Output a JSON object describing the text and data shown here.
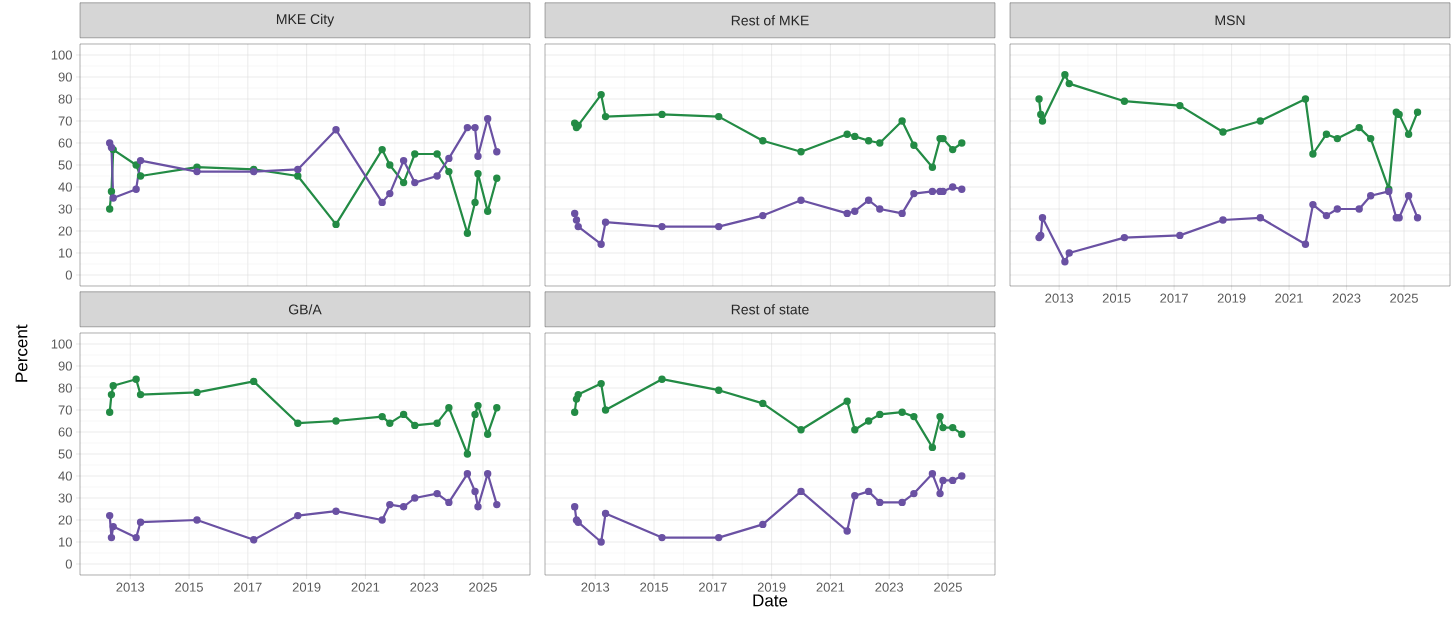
{
  "chart_data": [
    {
      "type": "line",
      "title": "MKE City",
      "ylabel": "Percent",
      "x": [
        2012.3,
        2012.36,
        2012.42,
        2013.2,
        2013.35,
        2015.27,
        2017.2,
        2018.7,
        2020.0,
        2021.57,
        2021.83,
        2022.3,
        2022.68,
        2023.44,
        2023.84,
        2024.47,
        2024.73,
        2024.83,
        2025.16,
        2025.47
      ],
      "xlim": [
        2011.29,
        2026.6
      ],
      "xticks": [
        2013,
        2015,
        2017,
        2019,
        2021,
        2023,
        2025
      ],
      "ylim": [
        -5,
        105
      ],
      "yticks": [
        0,
        10,
        20,
        30,
        40,
        50,
        60,
        70,
        80,
        90,
        100
      ],
      "tick_labels": "y",
      "grid": true,
      "marker": "circle",
      "line_style": "solid",
      "series": [
        {
          "color": "#238b45",
          "values": [
            30,
            38,
            57,
            50,
            45,
            49,
            48,
            45,
            23,
            57,
            50,
            42,
            55,
            55,
            47,
            19,
            33,
            46,
            29,
            44
          ]
        },
        {
          "color": "#6a51a3",
          "values": [
            60,
            58,
            35,
            39,
            52,
            47,
            47,
            48,
            66,
            33,
            37,
            52,
            42,
            45,
            53,
            67,
            67,
            54,
            71,
            56
          ]
        }
      ]
    },
    {
      "type": "line",
      "title": "Rest of MKE",
      "x": [
        2012.3,
        2012.36,
        2012.42,
        2013.2,
        2013.35,
        2015.27,
        2017.2,
        2018.7,
        2020.0,
        2021.57,
        2021.83,
        2022.3,
        2022.68,
        2023.44,
        2023.84,
        2024.47,
        2024.73,
        2024.83,
        2025.16,
        2025.47
      ],
      "xlim": [
        2011.29,
        2026.6
      ],
      "xticks": [
        2013,
        2015,
        2017,
        2019,
        2021,
        2023,
        2025
      ],
      "ylim": [
        -5,
        105
      ],
      "yticks": [
        0,
        10,
        20,
        30,
        40,
        50,
        60,
        70,
        80,
        90,
        100
      ],
      "tick_labels": false,
      "grid": true,
      "marker": "circle",
      "line_style": "solid",
      "series": [
        {
          "color": "#238b45",
          "values": [
            69,
            67,
            68,
            82,
            72,
            73,
            72,
            61,
            56,
            64,
            63,
            61,
            60,
            70,
            59,
            49,
            62,
            62,
            57,
            60
          ]
        },
        {
          "color": "#6a51a3",
          "values": [
            28,
            25,
            22,
            14,
            24,
            22,
            22,
            27,
            34,
            28,
            29,
            34,
            30,
            28,
            37,
            38,
            38,
            38,
            40,
            39
          ]
        }
      ]
    },
    {
      "type": "line",
      "title": "MSN",
      "x": [
        2012.3,
        2012.36,
        2012.42,
        2013.2,
        2013.35,
        2015.27,
        2017.2,
        2018.7,
        2020.0,
        2021.57,
        2021.83,
        2022.3,
        2022.68,
        2023.44,
        2023.84,
        2024.47,
        2024.73,
        2024.83,
        2025.16,
        2025.47
      ],
      "xlim": [
        2011.29,
        2026.6
      ],
      "xticks": [
        2013,
        2015,
        2017,
        2019,
        2021,
        2023,
        2025
      ],
      "ylim": [
        -5,
        105
      ],
      "yticks": [
        0,
        10,
        20,
        30,
        40,
        50,
        60,
        70,
        80,
        90,
        100
      ],
      "tick_labels": "x",
      "grid": true,
      "marker": "circle",
      "line_style": "solid",
      "series": [
        {
          "color": "#238b45",
          "values": [
            80,
            73,
            70,
            91,
            87,
            79,
            77,
            65,
            70,
            80,
            55,
            64,
            62,
            67,
            62,
            39,
            74,
            73,
            64,
            74
          ]
        },
        {
          "color": "#6a51a3",
          "values": [
            17,
            18,
            26,
            6,
            10,
            17,
            18,
            25,
            26,
            14,
            32,
            27,
            30,
            30,
            36,
            38,
            26,
            26,
            36,
            26
          ]
        }
      ]
    },
    {
      "type": "line",
      "title": "GB/A",
      "x": [
        2012.3,
        2012.36,
        2012.42,
        2013.2,
        2013.35,
        2015.27,
        2017.2,
        2018.7,
        2020.0,
        2021.57,
        2021.83,
        2022.3,
        2022.68,
        2023.44,
        2023.84,
        2024.47,
        2024.73,
        2024.83,
        2025.16,
        2025.47
      ],
      "xlim": [
        2011.29,
        2026.6
      ],
      "xticks": [
        2013,
        2015,
        2017,
        2019,
        2021,
        2023,
        2025
      ],
      "ylim": [
        -5,
        105
      ],
      "yticks": [
        0,
        10,
        20,
        30,
        40,
        50,
        60,
        70,
        80,
        90,
        100
      ],
      "grid": true,
      "marker": "circle",
      "line_style": "solid",
      "series": [
        {
          "color": "#238b45",
          "values": [
            69,
            77,
            81,
            84,
            77,
            78,
            83,
            64,
            65,
            67,
            64,
            68,
            63,
            64,
            71,
            50,
            68,
            72,
            59,
            71
          ]
        },
        {
          "color": "#6a51a3",
          "values": [
            22,
            12,
            17,
            12,
            19,
            20,
            11,
            22,
            24,
            20,
            27,
            26,
            30,
            32,
            28,
            41,
            33,
            26,
            41,
            27
          ]
        }
      ]
    },
    {
      "type": "line",
      "title": "Rest of state",
      "xlabel": "Date",
      "x": [
        2012.3,
        2012.36,
        2012.42,
        2013.2,
        2013.35,
        2015.27,
        2017.2,
        2018.7,
        2020.0,
        2021.57,
        2021.83,
        2022.3,
        2022.68,
        2023.44,
        2023.84,
        2024.47,
        2024.73,
        2024.83,
        2025.16,
        2025.47
      ],
      "xlim": [
        2011.29,
        2026.6
      ],
      "xticks": [
        2013,
        2015,
        2017,
        2019,
        2021,
        2023,
        2025
      ],
      "ylim": [
        -5,
        105
      ],
      "yticks": [
        0,
        10,
        20,
        30,
        40,
        50,
        60,
        70,
        80,
        90,
        100
      ],
      "tick_labels": "x",
      "grid": true,
      "marker": "circle",
      "line_style": "solid",
      "series": [
        {
          "color": "#238b45",
          "values": [
            69,
            75,
            77,
            82,
            70,
            84,
            79,
            73,
            61,
            74,
            61,
            65,
            68,
            69,
            67,
            53,
            67,
            62,
            62,
            59
          ]
        },
        {
          "color": "#6a51a3",
          "values": [
            26,
            20,
            19,
            10,
            23,
            12,
            12,
            18,
            33,
            15,
            31,
            33,
            28,
            28,
            32,
            41,
            32,
            38,
            38,
            40
          ]
        }
      ]
    }
  ]
}
